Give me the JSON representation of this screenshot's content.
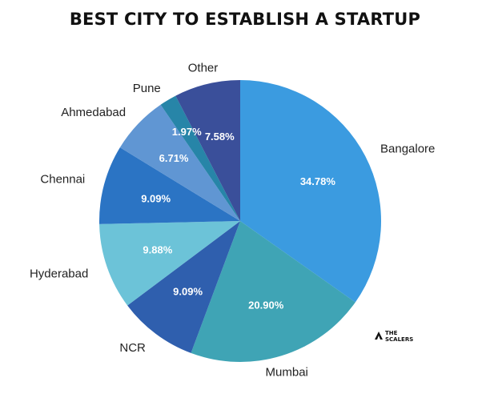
{
  "chart_data": {
    "type": "pie",
    "title": "BEST CITY TO ESTABLISH A STARTUP",
    "slices": [
      {
        "label": "Bangalore",
        "value": 34.78,
        "value_label": "34.78%",
        "color": "#3b9be0"
      },
      {
        "label": "Mumbai",
        "value": 20.9,
        "value_label": "20.90%",
        "color": "#3fa4b5"
      },
      {
        "label": "NCR",
        "value": 9.09,
        "value_label": "9.09%",
        "color": "#2f5fae"
      },
      {
        "label": "Hyderabad",
        "value": 9.88,
        "value_label": "9.88%",
        "color": "#6cc3d8"
      },
      {
        "label": "Chennai",
        "value": 9.09,
        "value_label": "9.09%",
        "color": "#2b74c4"
      },
      {
        "label": "Ahmedabad",
        "value": 6.71,
        "value_label": "6.71%",
        "color": "#6096d3"
      },
      {
        "label": "Pune",
        "value": 1.97,
        "value_label": "1.97%",
        "color": "#2785a8"
      },
      {
        "label": "Other",
        "value": 7.58,
        "value_label": "7.58%",
        "color": "#3a4f9a"
      }
    ],
    "start_angle": "12 o'clock",
    "direction": "clockwise",
    "legend": "none"
  },
  "logo": {
    "line1": "THE",
    "line2": "SCALERS"
  }
}
